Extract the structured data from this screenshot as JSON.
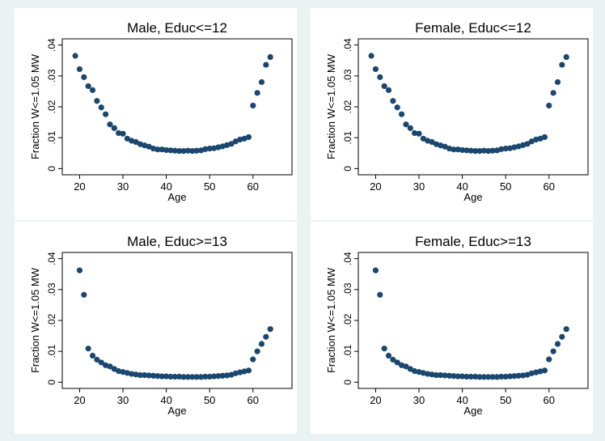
{
  "figure": {
    "background": "#eaf2f3",
    "panel_background": "#ffffff",
    "marker_color": "#1a476f"
  },
  "chart_data": [
    {
      "type": "scatter",
      "title": "Male, Educ<=12",
      "xlabel": "Age",
      "ylabel": "Fraction W<=1.05 MW",
      "xlim": [
        16,
        69
      ],
      "ylim": [
        -0.002,
        0.042
      ],
      "xticks": [
        20,
        30,
        40,
        50,
        60
      ],
      "yticks": [
        0,
        0.01,
        0.02,
        0.03,
        0.04
      ],
      "ytick_labels": [
        "0",
        ".01",
        ".02",
        ".03",
        ".04"
      ],
      "grid": false,
      "x": [
        19,
        20,
        21,
        22,
        23,
        24,
        25,
        26,
        27,
        28,
        29,
        30,
        31,
        32,
        33,
        34,
        35,
        36,
        37,
        38,
        39,
        40,
        41,
        42,
        43,
        44,
        45,
        46,
        47,
        48,
        49,
        50,
        51,
        52,
        53,
        54,
        55,
        56,
        57,
        58,
        59,
        60,
        61,
        62,
        63,
        64
      ],
      "y": [
        0.0365,
        0.0322,
        0.0296,
        0.0267,
        0.0254,
        0.0219,
        0.0198,
        0.0176,
        0.0143,
        0.0131,
        0.0115,
        0.0113,
        0.0097,
        0.009,
        0.0086,
        0.0079,
        0.0075,
        0.0071,
        0.0065,
        0.0062,
        0.0062,
        0.006,
        0.0059,
        0.0058,
        0.0057,
        0.0057,
        0.0058,
        0.0057,
        0.0058,
        0.0059,
        0.0063,
        0.0065,
        0.0066,
        0.0069,
        0.0072,
        0.0076,
        0.008,
        0.0088,
        0.0094,
        0.0097,
        0.0102,
        0.0204,
        0.0245,
        0.028,
        0.0336,
        0.0361
      ]
    },
    {
      "type": "scatter",
      "title": "Female, Educ<=12",
      "xlabel": "Age",
      "ylabel": "Fraction W<=1.05 MW",
      "xlim": [
        16,
        69
      ],
      "ylim": [
        -0.002,
        0.042
      ],
      "xticks": [
        20,
        30,
        40,
        50,
        60
      ],
      "yticks": [
        0,
        0.01,
        0.02,
        0.03,
        0.04
      ],
      "ytick_labels": [
        "0",
        ".01",
        ".02",
        ".03",
        ".04"
      ],
      "grid": false,
      "x": [
        19,
        20,
        21,
        22,
        23,
        24,
        25,
        26,
        27,
        28,
        29,
        30,
        31,
        32,
        33,
        34,
        35,
        36,
        37,
        38,
        39,
        40,
        41,
        42,
        43,
        44,
        45,
        46,
        47,
        48,
        49,
        50,
        51,
        52,
        53,
        54,
        55,
        56,
        57,
        58,
        59,
        60,
        61,
        62,
        63,
        64
      ],
      "y": [
        0.0365,
        0.0322,
        0.0296,
        0.0267,
        0.0254,
        0.0219,
        0.0198,
        0.0176,
        0.0143,
        0.0131,
        0.0115,
        0.0113,
        0.0097,
        0.009,
        0.0086,
        0.0079,
        0.0075,
        0.0071,
        0.0065,
        0.0062,
        0.0062,
        0.006,
        0.0059,
        0.0058,
        0.0057,
        0.0057,
        0.0058,
        0.0057,
        0.0058,
        0.0059,
        0.0063,
        0.0065,
        0.0066,
        0.0069,
        0.0072,
        0.0076,
        0.008,
        0.0088,
        0.0094,
        0.0097,
        0.0102,
        0.0204,
        0.0245,
        0.028,
        0.0336,
        0.0361
      ]
    },
    {
      "type": "scatter",
      "title": "Male, Educ>=13",
      "xlabel": "Age",
      "ylabel": "Fraction W<=1.05 MW",
      "xlim": [
        16,
        69
      ],
      "ylim": [
        -0.002,
        0.042
      ],
      "xticks": [
        20,
        30,
        40,
        50,
        60
      ],
      "yticks": [
        0,
        0.01,
        0.02,
        0.03,
        0.04
      ],
      "ytick_labels": [
        "0",
        ".01",
        ".02",
        ".03",
        ".04"
      ],
      "grid": false,
      "x": [
        20,
        21,
        22,
        23,
        24,
        25,
        26,
        27,
        28,
        29,
        30,
        31,
        32,
        33,
        34,
        35,
        36,
        37,
        38,
        39,
        40,
        41,
        42,
        43,
        44,
        45,
        46,
        47,
        48,
        49,
        50,
        51,
        52,
        53,
        54,
        55,
        56,
        57,
        58,
        59,
        60,
        61,
        62,
        63,
        64
      ],
      "y": [
        0.0362,
        0.0283,
        0.0109,
        0.0086,
        0.0073,
        0.0064,
        0.0055,
        0.0051,
        0.0043,
        0.0036,
        0.0033,
        0.003,
        0.0027,
        0.0025,
        0.0023,
        0.0023,
        0.0022,
        0.0021,
        0.002,
        0.0019,
        0.0019,
        0.0018,
        0.0018,
        0.0018,
        0.0017,
        0.0017,
        0.0017,
        0.0017,
        0.0017,
        0.0018,
        0.0018,
        0.0019,
        0.002,
        0.0021,
        0.0022,
        0.0024,
        0.0029,
        0.0032,
        0.0035,
        0.0038,
        0.0074,
        0.01,
        0.0124,
        0.0147,
        0.0172
      ]
    },
    {
      "type": "scatter",
      "title": "Female, Educ>=13",
      "xlabel": "Age",
      "ylabel": "Fraction W<=1.05 MW",
      "xlim": [
        16,
        69
      ],
      "ylim": [
        -0.002,
        0.042
      ],
      "xticks": [
        20,
        30,
        40,
        50,
        60
      ],
      "yticks": [
        0,
        0.01,
        0.02,
        0.03,
        0.04
      ],
      "ytick_labels": [
        "0",
        ".01",
        ".02",
        ".03",
        ".04"
      ],
      "grid": false,
      "x": [
        20,
        21,
        22,
        23,
        24,
        25,
        26,
        27,
        28,
        29,
        30,
        31,
        32,
        33,
        34,
        35,
        36,
        37,
        38,
        39,
        40,
        41,
        42,
        43,
        44,
        45,
        46,
        47,
        48,
        49,
        50,
        51,
        52,
        53,
        54,
        55,
        56,
        57,
        58,
        59,
        60,
        61,
        62,
        63,
        64
      ],
      "y": [
        0.0362,
        0.0283,
        0.0109,
        0.0086,
        0.0073,
        0.0064,
        0.0055,
        0.0051,
        0.0043,
        0.0036,
        0.0033,
        0.003,
        0.0027,
        0.0025,
        0.0023,
        0.0023,
        0.0022,
        0.0021,
        0.002,
        0.0019,
        0.0019,
        0.0018,
        0.0018,
        0.0018,
        0.0017,
        0.0017,
        0.0017,
        0.0017,
        0.0017,
        0.0018,
        0.0018,
        0.0019,
        0.002,
        0.0021,
        0.0022,
        0.0024,
        0.0029,
        0.0032,
        0.0035,
        0.0038,
        0.0074,
        0.01,
        0.0124,
        0.0147,
        0.0172
      ]
    }
  ]
}
